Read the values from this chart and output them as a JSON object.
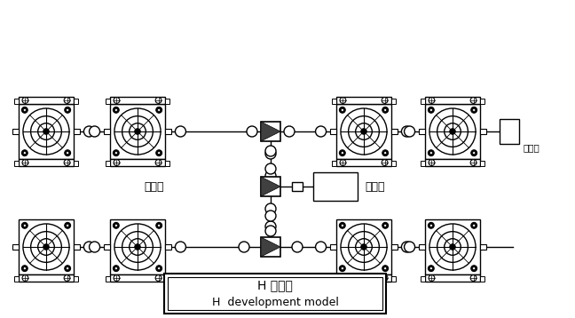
{
  "title_cn": "H 发展型",
  "title_en": "H  development model",
  "label_counter": "计数器",
  "label_angle": "转角器",
  "label_drive": "驱动源",
  "bg_color": "#ffffff",
  "line_color": "#000000",
  "fig_width": 6.48,
  "fig_height": 3.58,
  "dpi": 100
}
